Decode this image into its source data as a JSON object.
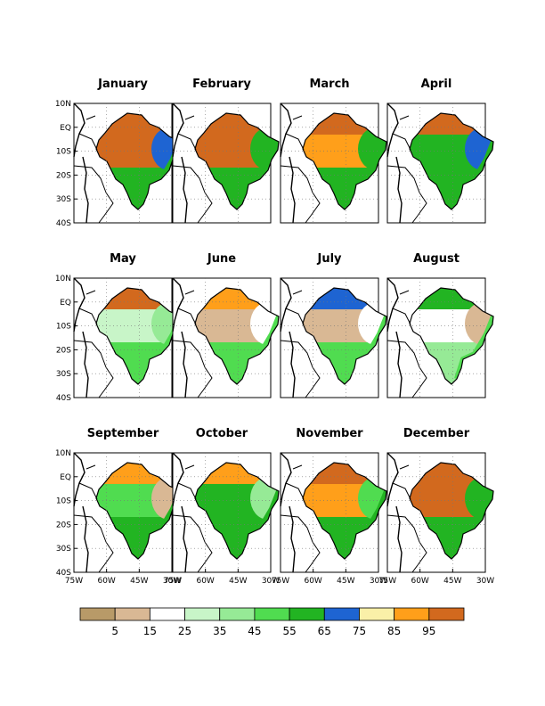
{
  "chart_data": {
    "type": "heatmap",
    "panels": [
      {
        "title": "January",
        "fields": {
          "north": 95,
          "northeast": 65,
          "central": 95,
          "south": 55
        }
      },
      {
        "title": "February",
        "fields": {
          "north": 95,
          "northeast": 55,
          "central": 95,
          "south": 55
        }
      },
      {
        "title": "March",
        "fields": {
          "north": 95,
          "northeast": 55,
          "central": 90,
          "south": 55
        }
      },
      {
        "title": "April",
        "fields": {
          "north": 95,
          "northeast": 65,
          "central": 55,
          "south": 55
        }
      },
      {
        "title": "May",
        "fields": {
          "north": 95,
          "northeast": 35,
          "central": 30,
          "south": 45
        }
      },
      {
        "title": "June",
        "fields": {
          "north": 90,
          "northeast": 15,
          "central": 10,
          "south": 45
        }
      },
      {
        "title": "July",
        "fields": {
          "north": 65,
          "northeast": 15,
          "central": 10,
          "south": 45
        }
      },
      {
        "title": "August",
        "fields": {
          "north": 55,
          "northeast": 10,
          "central": 15,
          "south": 35
        }
      },
      {
        "title": "September",
        "fields": {
          "north": 85,
          "northeast": 10,
          "central": 45,
          "south": 55
        }
      },
      {
        "title": "October",
        "fields": {
          "north": 90,
          "northeast": 35,
          "central": 55,
          "south": 55
        }
      },
      {
        "title": "November",
        "fields": {
          "north": 95,
          "northeast": 45,
          "central": 85,
          "south": 55
        }
      },
      {
        "title": "December",
        "fields": {
          "north": 95,
          "northeast": 55,
          "central": 95,
          "south": 55
        }
      }
    ],
    "lat_ticks": [
      "10N",
      "EQ",
      "10S",
      "20S",
      "30S",
      "40S"
    ],
    "lon_ticks": [
      "75W",
      "60W",
      "45W",
      "30W"
    ],
    "grid": "dotted",
    "colorbar": {
      "placement": "bottom",
      "colors": [
        "#b89a68",
        "#d9b894",
        "#ffffff",
        "#c8f5c8",
        "#96ea96",
        "#50dc50",
        "#22b422",
        "#1e64d2",
        "#faf0a8",
        "#ff9f1a",
        "#d2691e"
      ],
      "labels": [
        "5",
        "15",
        "25",
        "35",
        "45",
        "55",
        "65",
        "75",
        "85",
        "95"
      ]
    }
  }
}
